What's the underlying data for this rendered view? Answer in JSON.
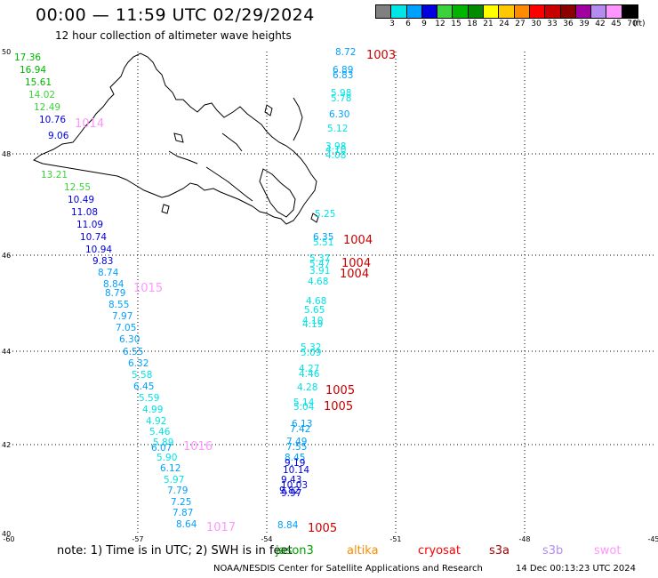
{
  "title": "00:00 — 11:59 UTC 02/29/2024",
  "subtitle": "12 hour collection of altimeter wave heights",
  "colorbar": {
    "colors": [
      "#808080",
      "#00e5e5",
      "#00a0ff",
      "#0000e0",
      "#3cd23c",
      "#00b400",
      "#008c00",
      "#ffff00",
      "#ffc800",
      "#ff8c00",
      "#ff0000",
      "#c80000",
      "#8c0000",
      "#a000a0",
      "#b48cf0",
      "#ff96ff",
      "#000000"
    ],
    "ticks": [
      "3",
      "6",
      "9",
      "12",
      "15",
      "18",
      "21",
      "24",
      "27",
      "30",
      "33",
      "36",
      "39",
      "42",
      "45",
      "70"
    ],
    "unit": "(ft)"
  },
  "axis": {
    "lat_labels": [
      "50",
      "48",
      "46",
      "44",
      "42",
      "40"
    ],
    "lon_labels": [
      "-60",
      "-57",
      "-54",
      "-51",
      "-48",
      "-45"
    ]
  },
  "tracks": [
    [
      {
        "v": "17.36",
        "c": "#00b400"
      },
      {
        "v": "16.94",
        "c": "#00b400"
      },
      {
        "v": "15.61",
        "c": "#00b400"
      },
      {
        "v": "14.02",
        "c": "#3cd23c"
      },
      {
        "v": "12.49",
        "c": "#3cd23c"
      },
      {
        "v": "10.76",
        "c": "#0000e0"
      },
      {
        "v": "9.06",
        "c": "#0000e0"
      },
      {
        "v": "13.21",
        "c": "#3cd23c"
      },
      {
        "v": "12.55",
        "c": "#3cd23c"
      },
      {
        "v": "10.49",
        "c": "#0000e0"
      },
      {
        "v": "11.08",
        "c": "#0000e0"
      },
      {
        "v": "11.09",
        "c": "#0000e0"
      },
      {
        "v": "10.74",
        "c": "#0000e0"
      },
      {
        "v": "10.94",
        "c": "#0000e0"
      },
      {
        "v": "9.83",
        "c": "#0000e0"
      },
      {
        "v": "8.74",
        "c": "#00a0ff"
      },
      {
        "v": "8.84",
        "c": "#00a0ff"
      },
      {
        "v": "8.79",
        "c": "#00a0ff"
      },
      {
        "v": "8.55",
        "c": "#00a0ff"
      },
      {
        "v": "7.97",
        "c": "#00a0ff"
      },
      {
        "v": "7.05",
        "c": "#00a0ff"
      },
      {
        "v": "6.30",
        "c": "#00a0ff"
      },
      {
        "v": "6.55",
        "c": "#00a0ff"
      },
      {
        "v": "6.32",
        "c": "#00a0ff"
      },
      {
        "v": "5.58",
        "c": "#00e5e5"
      },
      {
        "v": "6.45",
        "c": "#00a0ff"
      },
      {
        "v": "5.59",
        "c": "#00e5e5"
      },
      {
        "v": "4.99",
        "c": "#00e5e5"
      },
      {
        "v": "4.92",
        "c": "#00e5e5"
      },
      {
        "v": "5.46",
        "c": "#00e5e5"
      },
      {
        "v": "5.89",
        "c": "#00e5e5"
      },
      {
        "v": "6.07",
        "c": "#00a0ff"
      },
      {
        "v": "5.90",
        "c": "#00e5e5"
      },
      {
        "v": "6.12",
        "c": "#00a0ff"
      },
      {
        "v": "5.97",
        "c": "#00e5e5"
      },
      {
        "v": "7.79",
        "c": "#00a0ff"
      },
      {
        "v": "7.25",
        "c": "#00a0ff"
      },
      {
        "v": "7.87",
        "c": "#00a0ff"
      },
      {
        "v": "8.64",
        "c": "#00a0ff"
      }
    ],
    [
      {
        "v": "8.72",
        "c": "#00a0ff"
      },
      {
        "v": "6.89",
        "c": "#00a0ff"
      },
      {
        "v": "6.83",
        "c": "#00a0ff"
      },
      {
        "v": "5.98",
        "c": "#00e5e5"
      },
      {
        "v": "5.78",
        "c": "#00e5e5"
      },
      {
        "v": "6.30",
        "c": "#00a0ff"
      },
      {
        "v": "5.12",
        "c": "#00e5e5"
      },
      {
        "v": "3.98",
        "c": "#00e5e5"
      },
      {
        "v": "4.10",
        "c": "#00e5e5"
      },
      {
        "v": "4.08",
        "c": "#00e5e5"
      },
      {
        "v": "5.25",
        "c": "#00e5e5"
      },
      {
        "v": "6.35",
        "c": "#00a0ff"
      },
      {
        "v": "5.51",
        "c": "#00e5e5"
      },
      {
        "v": "5.37",
        "c": "#00e5e5"
      },
      {
        "v": "5.47",
        "c": "#00e5e5"
      },
      {
        "v": "3.91",
        "c": "#00e5e5"
      },
      {
        "v": "4.68",
        "c": "#00e5e5"
      },
      {
        "v": "4.68",
        "c": "#00e5e5"
      },
      {
        "v": "5.65",
        "c": "#00e5e5"
      },
      {
        "v": "4.10",
        "c": "#00e5e5"
      },
      {
        "v": "4.19",
        "c": "#00e5e5"
      },
      {
        "v": "5.32",
        "c": "#00e5e5"
      },
      {
        "v": "5.09",
        "c": "#00e5e5"
      },
      {
        "v": "4.27",
        "c": "#00e5e5"
      },
      {
        "v": "4.46",
        "c": "#00e5e5"
      },
      {
        "v": "4.28",
        "c": "#00e5e5"
      },
      {
        "v": "5.14",
        "c": "#00e5e5"
      },
      {
        "v": "5.04",
        "c": "#00e5e5"
      },
      {
        "v": "6.13",
        "c": "#00a0ff"
      },
      {
        "v": "7.42",
        "c": "#00a0ff"
      },
      {
        "v": "7.49",
        "c": "#00a0ff"
      },
      {
        "v": "7.55",
        "c": "#00a0ff"
      },
      {
        "v": "8.45",
        "c": "#00a0ff"
      },
      {
        "v": "9.19",
        "c": "#0000e0"
      },
      {
        "v": "10.14",
        "c": "#0000e0"
      },
      {
        "v": "9.43",
        "c": "#0000e0"
      },
      {
        "v": "10.03",
        "c": "#0000e0"
      },
      {
        "v": "9.82",
        "c": "#0000e0"
      },
      {
        "v": "9.97",
        "c": "#0000e0"
      },
      {
        "v": "8.84",
        "c": "#00a0ff"
      }
    ]
  ],
  "pressure_labels": [
    {
      "v": "1014",
      "c": "#ff96ff"
    },
    {
      "v": "1015",
      "c": "#ff96ff"
    },
    {
      "v": "1016",
      "c": "#ff96ff"
    },
    {
      "v": "1017",
      "c": "#ff96ff"
    },
    {
      "v": "1003",
      "c": "#c80000"
    },
    {
      "v": "1004",
      "c": "#c80000"
    },
    {
      "v": "1004",
      "c": "#c80000"
    },
    {
      "v": "1004",
      "c": "#c80000"
    },
    {
      "v": "1005",
      "c": "#c80000"
    },
    {
      "v": "1005",
      "c": "#c80000"
    },
    {
      "v": "1005",
      "c": "#c80000"
    }
  ],
  "note": "note: 1) Time is in UTC; 2) SWH is in feet",
  "satellites": [
    {
      "name": "jason3",
      "color": "#00a000"
    },
    {
      "name": "altika",
      "color": "#ff8c00"
    },
    {
      "name": "cryosat",
      "color": "#ff0000"
    },
    {
      "name": "s3a",
      "color": "#a00000"
    },
    {
      "name": "s3b",
      "color": "#b48cf0"
    },
    {
      "name": "swot",
      "color": "#ff96ff"
    }
  ],
  "footer": "NOAA/NESDIS Center for Satellite Applications and Research",
  "footer_time": "14 Dec 00:13:23 UTC 2024"
}
